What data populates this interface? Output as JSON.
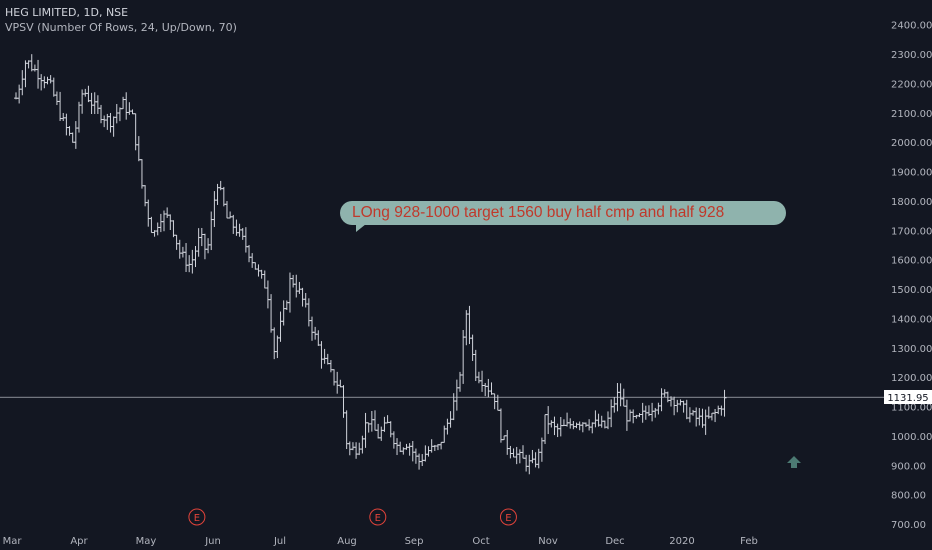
{
  "header": {
    "title": "HEG LIMITED, 1D, NSE",
    "indicator": "VPSV (Number Of Rows, 24, Up/Down, 70)"
  },
  "annotation": {
    "text": "LOng 928-1000 target 1560  buy half cmp and half 928"
  },
  "colors": {
    "background": "#131722",
    "bars": "#d1d4dc",
    "axis_text": "#b2b5be",
    "callout_bg": "#8fb3ad",
    "callout_text": "#c0392b",
    "earnings_marker": "#e0433a",
    "arrow": "#4c7a73",
    "price_label_bg": "#ffffff"
  },
  "chart_data": {
    "type": "ohlc",
    "title": "HEG LIMITED, 1D, NSE",
    "x_tick_labels": [
      "Mar",
      "Apr",
      "May",
      "Jun",
      "Jul",
      "Aug",
      "Sep",
      "Oct",
      "Nov",
      "Dec",
      "2020",
      "Feb"
    ],
    "y_tick_labels": [
      "700.00",
      "800.00",
      "900.00",
      "1000.00",
      "1100.00",
      "1200.00",
      "1300.00",
      "1400.00",
      "1500.00",
      "1600.00",
      "1700.00",
      "1800.00",
      "1900.00",
      "2000.00",
      "2100.00",
      "2200.00",
      "2300.00",
      "2400.00"
    ],
    "ylim": [
      680,
      2450
    ],
    "last_price": 1131.95,
    "last_price_label": "1131.95",
    "earnings_markers": [
      {
        "label": "E",
        "month_index": 2.7
      },
      {
        "label": "E",
        "month_index": 5.4
      },
      {
        "label": "E",
        "month_index": 7.35
      }
    ],
    "grid": false,
    "price_path": [
      [
        0.0,
        2150
      ],
      [
        0.15,
        2280
      ],
      [
        0.3,
        2240
      ],
      [
        0.5,
        2200
      ],
      [
        0.7,
        2070
      ],
      [
        0.85,
        2000
      ],
      [
        1.0,
        2180
      ],
      [
        1.2,
        2110
      ],
      [
        1.4,
        2070
      ],
      [
        1.6,
        2130
      ],
      [
        1.75,
        2080
      ],
      [
        1.8,
        1980
      ],
      [
        1.9,
        1820
      ],
      [
        2.05,
        1680
      ],
      [
        2.15,
        1750
      ],
      [
        2.3,
        1740
      ],
      [
        2.45,
        1620
      ],
      [
        2.6,
        1580
      ],
      [
        2.75,
        1680
      ],
      [
        2.85,
        1620
      ],
      [
        3.0,
        1870
      ],
      [
        3.15,
        1740
      ],
      [
        3.3,
        1700
      ],
      [
        3.45,
        1640
      ],
      [
        3.6,
        1560
      ],
      [
        3.75,
        1500
      ],
      [
        3.85,
        1290
      ],
      [
        4.0,
        1420
      ],
      [
        4.1,
        1540
      ],
      [
        4.25,
        1480
      ],
      [
        4.4,
        1380
      ],
      [
        4.55,
        1280
      ],
      [
        4.7,
        1210
      ],
      [
        4.85,
        1160
      ],
      [
        4.95,
        950
      ],
      [
        5.1,
        960
      ],
      [
        5.25,
        1060
      ],
      [
        5.4,
        1000
      ],
      [
        5.55,
        1040
      ],
      [
        5.7,
        960
      ],
      [
        5.85,
        980
      ],
      [
        6.0,
        910
      ],
      [
        6.15,
        950
      ],
      [
        6.3,
        960
      ],
      [
        6.45,
        1050
      ],
      [
        6.6,
        1160
      ],
      [
        6.72,
        1420
      ],
      [
        6.85,
        1220
      ],
      [
        7.0,
        1180
      ],
      [
        7.15,
        1130
      ],
      [
        7.25,
        990
      ],
      [
        7.4,
        950
      ],
      [
        7.55,
        920
      ],
      [
        7.7,
        900
      ],
      [
        7.8,
        930
      ],
      [
        7.9,
        1060
      ],
      [
        8.05,
        1020
      ],
      [
        8.2,
        1030
      ],
      [
        8.35,
        1050
      ],
      [
        8.5,
        1050
      ],
      [
        8.65,
        1040
      ],
      [
        8.8,
        1030
      ],
      [
        8.9,
        1100
      ],
      [
        9.0,
        1150
      ],
      [
        9.1,
        1070
      ],
      [
        9.25,
        1050
      ],
      [
        9.4,
        1080
      ],
      [
        9.55,
        1110
      ],
      [
        9.7,
        1140
      ],
      [
        9.85,
        1120
      ],
      [
        10.0,
        1080
      ],
      [
        10.15,
        1060
      ],
      [
        10.3,
        1050
      ],
      [
        10.45,
        1080
      ],
      [
        10.6,
        1130
      ]
    ]
  }
}
